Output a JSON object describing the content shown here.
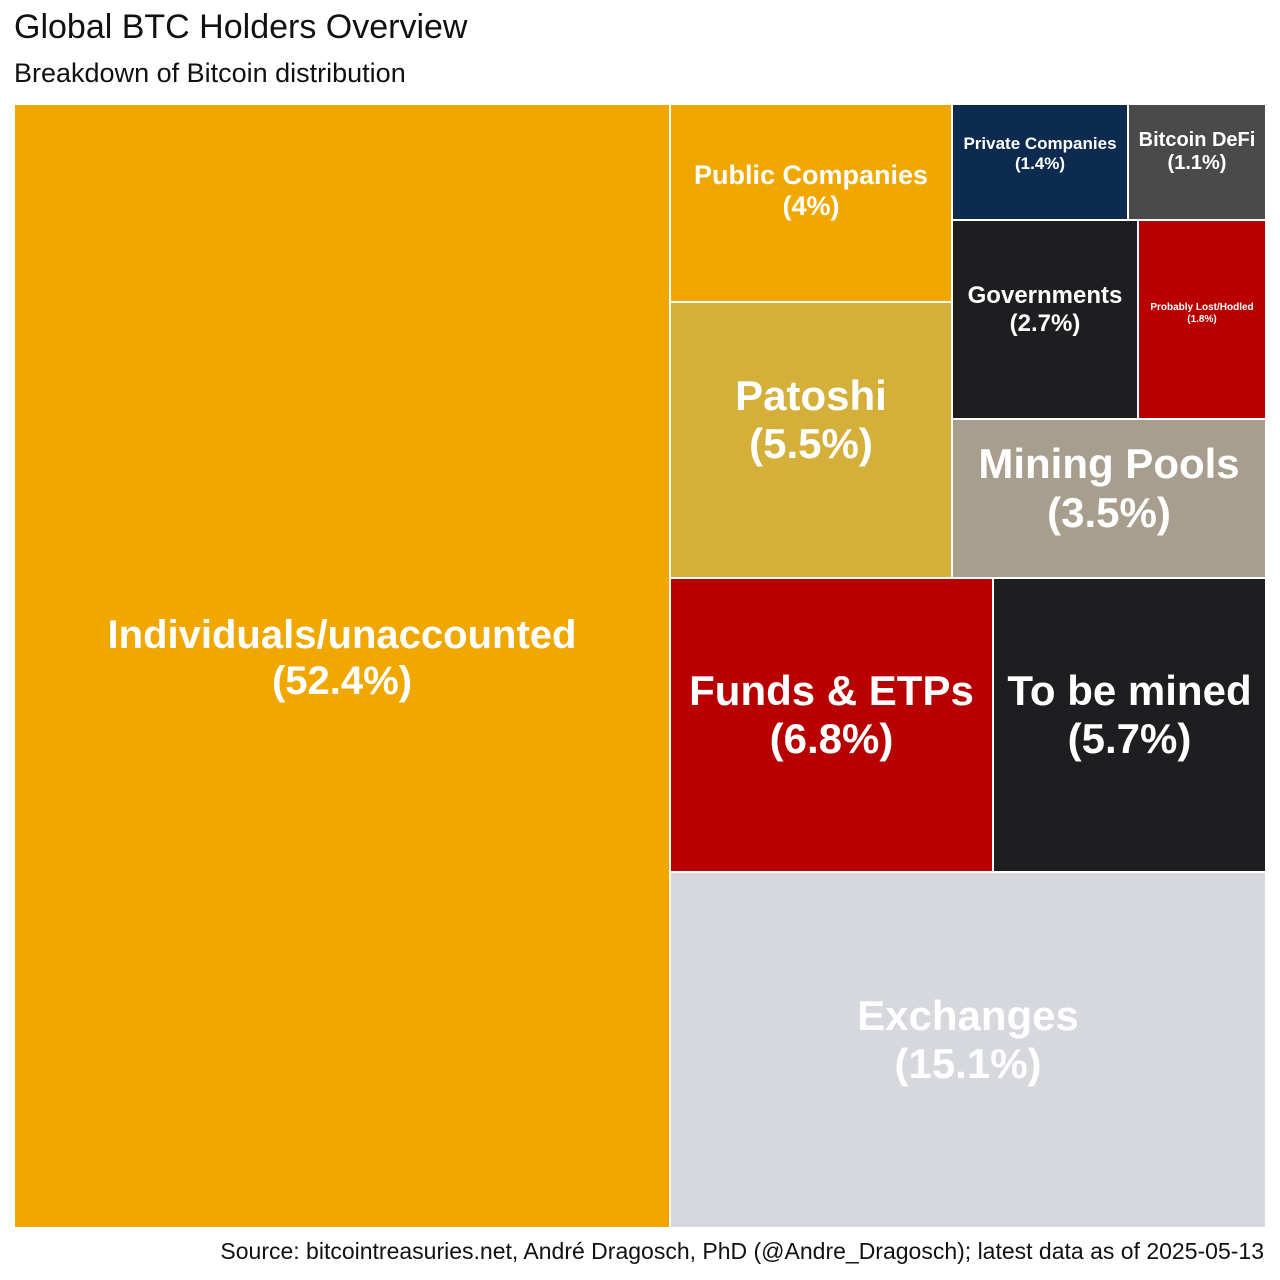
{
  "chart_data": {
    "type": "treemap",
    "title": "Global BTC Holders Overview",
    "subtitle": "Breakdown of Bitcoin distribution",
    "source": "Source: bitcointreasuries.net, André Dragosch, PhD (@Andre_Dragosch); latest data as of 2025-05-13",
    "unit": "%",
    "items": [
      {
        "label": "Individuals/unaccounted",
        "value": 52.4,
        "value_label": "(52.4%)",
        "color": "#F0A800"
      },
      {
        "label": "Exchanges",
        "value": 15.1,
        "value_label": "(15.1%)",
        "color": "#D6D8DD"
      },
      {
        "label": "Funds & ETPs",
        "value": 6.8,
        "value_label": "(6.8%)",
        "color": "#B80000"
      },
      {
        "label": "To be mined",
        "value": 5.7,
        "value_label": "(5.7%)",
        "color": "#1E1E20"
      },
      {
        "label": "Patoshi",
        "value": 5.5,
        "value_label": "(5.5%)",
        "color": "#D4AF3A"
      },
      {
        "label": "Public Companies",
        "value": 4,
        "value_label": "(4%)",
        "color": "#F0A800"
      },
      {
        "label": "Mining Pools",
        "value": 3.5,
        "value_label": "(3.5%)",
        "color": "#A89E8E"
      },
      {
        "label": "Governments",
        "value": 2.7,
        "value_label": "(2.7%)",
        "color": "#1E1E20"
      },
      {
        "label": "Probably Lost/Hodled",
        "value": 1.8,
        "value_label": "(1.8%)",
        "color": "#B80000"
      },
      {
        "label": "Private Companies",
        "value": 1.4,
        "value_label": "(1.4%)",
        "color": "#0D2B4E"
      },
      {
        "label": "Bitcoin DeFi",
        "value": 1.1,
        "value_label": "(1.1%)",
        "color": "#4A4A4A"
      }
    ]
  }
}
